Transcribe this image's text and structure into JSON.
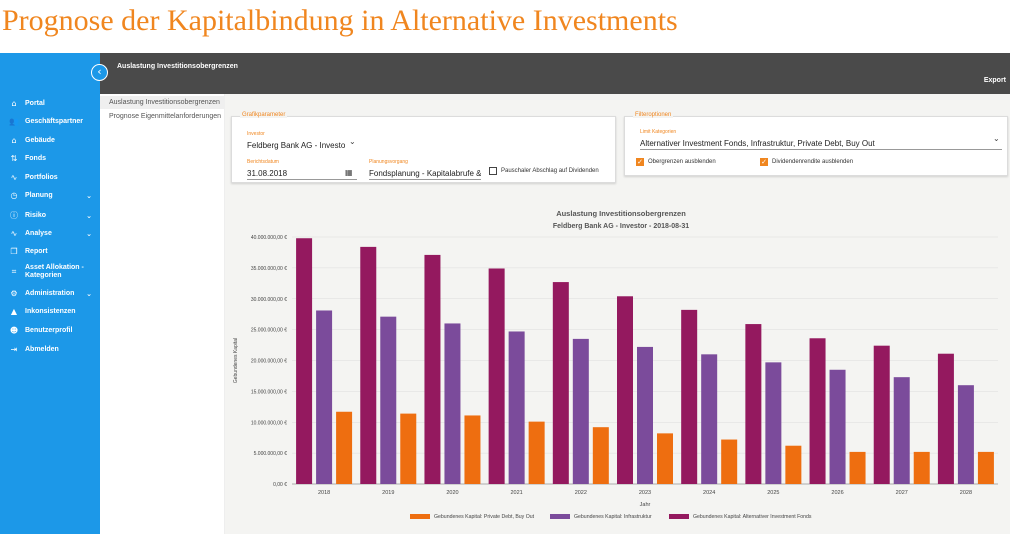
{
  "page_title": "Prognose der Kapitalbindung in Alternative Investments",
  "topbar": {
    "title": "Auslastung Investitionsobergrenzen",
    "export_label": "Export"
  },
  "sidebar": {
    "collapse_icon": "chevron-left-icon",
    "items": [
      {
        "label": "Portal",
        "icon": "home-icon",
        "glyph": "⌂",
        "has_children": false
      },
      {
        "label": "Geschäftspartner",
        "icon": "people-icon",
        "glyph": "👥",
        "has_children": false
      },
      {
        "label": "Gebäude",
        "icon": "building-icon",
        "glyph": "⌂",
        "has_children": false
      },
      {
        "label": "Fonds",
        "icon": "fund-icon",
        "glyph": "⇅",
        "has_children": false
      },
      {
        "label": "Portfolios",
        "icon": "trend-icon",
        "glyph": "∿",
        "has_children": false
      },
      {
        "label": "Planung",
        "icon": "clock-icon",
        "glyph": "◷",
        "has_children": true
      },
      {
        "label": "Risiko",
        "icon": "alert-circle-icon",
        "glyph": "ⓘ",
        "has_children": true
      },
      {
        "label": "Analyse",
        "icon": "chart-line-icon",
        "glyph": "∿",
        "has_children": true
      },
      {
        "label": "Report",
        "icon": "report-icon",
        "glyph": "❐",
        "has_children": false
      },
      {
        "label": "Asset Allokation - Kategorien",
        "icon": "crop-icon",
        "glyph": "⌗",
        "has_children": false
      },
      {
        "label": "Administration",
        "icon": "gear-icon",
        "glyph": "⚙",
        "has_children": true
      },
      {
        "label": "Inkonsistenzen",
        "icon": "warning-icon",
        "glyph": "▲",
        "has_children": false
      },
      {
        "label": "Benutzerprofil",
        "icon": "user-icon",
        "glyph": "☻",
        "has_children": false
      },
      {
        "label": "Abmelden",
        "icon": "logout-icon",
        "glyph": "⇥",
        "has_children": false
      }
    ],
    "chevron": "⌄"
  },
  "subnav": {
    "items": [
      "Auslastung Investitionsobergrenzen",
      "Prognose Eigenmittelanforderungen"
    ]
  },
  "grafikparameter": {
    "title": "Grafikparameter",
    "investor_label": "Investor",
    "investor_value": "Feldberg Bank AG - Investo",
    "date_label": "Berichtsdatum",
    "date_value": "31.08.2018",
    "planning_label": "Planungsvorgang",
    "planning_value": "Fondsplanung - Kapitalabrufe &",
    "checkbox_label": "Pauschaler Abschlag auf Dividenden",
    "checkbox_checked": false
  },
  "filteroptionen": {
    "title": "Filteroptionen",
    "category_label": "Limit Kategorien",
    "category_value": "Alternativer Investment Fonds, Infrastruktur, Private Debt, Buy Out",
    "checkbox1_label": "Obergrenzen ausblenden",
    "checkbox1_checked": true,
    "checkbox2_label": "Dividendenrendite ausblenden",
    "checkbox2_checked": true
  },
  "chart_data": {
    "type": "bar",
    "title": "Auslastung Investitionsobergrenzen",
    "subtitle": "Feldberg Bank AG - Investor - 2018-08-31",
    "xlabel": "Jahr",
    "ylabel": "Gebundenes Kapital",
    "ylim": [
      0,
      40000000
    ],
    "y_ticks": [
      "0,00 €",
      "5.000.000,00 €",
      "10.000.000,00 €",
      "15.000.000,00 €",
      "20.000.000,00 €",
      "25.000.000,00 €",
      "30.000.000,00 €",
      "35.000.000,00 €",
      "40.000.000,00 €"
    ],
    "categories": [
      "2018",
      "2019",
      "2020",
      "2021",
      "2022",
      "2023",
      "2024",
      "2025",
      "2026",
      "2027",
      "2028"
    ],
    "legend_position": "bottom",
    "series": [
      {
        "name": "Gebundenes Kapital: Alternativer Investment Fonds",
        "color": "#94195f",
        "values": [
          39800000,
          38400000,
          37100000,
          34900000,
          32700000,
          30400000,
          28200000,
          25900000,
          23600000,
          22400000,
          21100000
        ]
      },
      {
        "name": "Gebundenes Kapital: Infrastruktur",
        "color": "#7b4b9b",
        "values": [
          28100000,
          27100000,
          26000000,
          24700000,
          23500000,
          22200000,
          21000000,
          19700000,
          18500000,
          17300000,
          16000000
        ]
      },
      {
        "name": "Gebundenes Kapital: Private Debt, Buy Out",
        "color": "#ee6e10",
        "values": [
          11700000,
          11400000,
          11100000,
          10100000,
          9200000,
          8200000,
          7200000,
          6200000,
          5200000,
          5200000,
          5200000
        ]
      }
    ],
    "legend_order": [
      2,
      1,
      0
    ]
  }
}
